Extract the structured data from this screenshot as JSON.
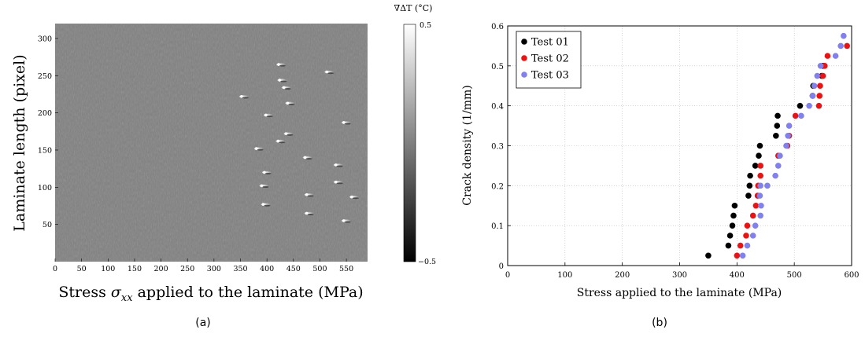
{
  "colors": {
    "test01": "#000000",
    "test02": "#ee1111",
    "test03": "#8080ee",
    "thermal_background": "#808080",
    "grid": "#bbbbbb"
  },
  "panel_a": {
    "caption": "(a)",
    "colorbar_title": "∇ΔT (°C)",
    "colorbar_max_label": "0.5",
    "colorbar_min_label": "−0.5",
    "xlabel_prefix": "Stress ",
    "xlabel_sigma": "σ",
    "xlabel_sub": "xx",
    "xlabel_suffix": " applied to the laminate (MPa)",
    "ylabel": "Laminate length (pixel)"
  },
  "panel_b": {
    "caption": "(b)"
  },
  "chart_data": [
    {
      "type": "heatmap",
      "xlabel": "Stress σxx applied to the laminate (MPa)",
      "ylabel": "Laminate length (pixel)",
      "colorbar_label": "∇ΔT (°C)",
      "colorbar_range": [
        -0.5,
        0.5
      ],
      "xlim": [
        0,
        590
      ],
      "ylim": [
        0,
        320
      ],
      "xticks": [
        0,
        50,
        100,
        150,
        200,
        250,
        300,
        350,
        400,
        450,
        500,
        550
      ],
      "yticks": [
        50,
        100,
        150,
        200,
        250,
        300
      ],
      "crack_signatures": [
        {
          "x": 352,
          "y": 222
        },
        {
          "x": 380,
          "y": 152
        },
        {
          "x": 390,
          "y": 102
        },
        {
          "x": 393,
          "y": 77
        },
        {
          "x": 395,
          "y": 120
        },
        {
          "x": 398,
          "y": 197
        },
        {
          "x": 421,
          "y": 162
        },
        {
          "x": 422,
          "y": 265
        },
        {
          "x": 424,
          "y": 244
        },
        {
          "x": 432,
          "y": 234
        },
        {
          "x": 436,
          "y": 172
        },
        {
          "x": 439,
          "y": 213
        },
        {
          "x": 472,
          "y": 140
        },
        {
          "x": 475,
          "y": 90
        },
        {
          "x": 475,
          "y": 65
        },
        {
          "x": 513,
          "y": 255
        },
        {
          "x": 530,
          "y": 130
        },
        {
          "x": 530,
          "y": 107
        },
        {
          "x": 545,
          "y": 187
        },
        {
          "x": 545,
          "y": 55
        },
        {
          "x": 560,
          "y": 87
        }
      ]
    },
    {
      "type": "scatter",
      "xlabel": "Stress applied to the laminate (MPa)",
      "ylabel": "Crack density (1/mm)",
      "xlim": [
        0,
        600
      ],
      "ylim": [
        0,
        0.6
      ],
      "xticks": [
        0,
        100,
        200,
        300,
        400,
        500,
        600
      ],
      "yticks": [
        0,
        0.1,
        0.2,
        0.3,
        0.4,
        0.5,
        0.6
      ],
      "ytick_labels": [
        "0",
        "0.1",
        "0.2",
        "0.3",
        "0.4",
        "0.5",
        "0.6"
      ],
      "grid": true,
      "legend_position": "top-left",
      "series": [
        {
          "name": "Test 01",
          "points": [
            [
              350,
              0.025
            ],
            [
              385,
              0.05
            ],
            [
              388,
              0.075
            ],
            [
              392,
              0.1
            ],
            [
              394,
              0.125
            ],
            [
              396,
              0.15
            ],
            [
              420,
              0.175
            ],
            [
              422,
              0.2
            ],
            [
              423,
              0.225
            ],
            [
              432,
              0.25
            ],
            [
              438,
              0.275
            ],
            [
              440,
              0.3
            ],
            [
              468,
              0.325
            ],
            [
              470,
              0.35
            ],
            [
              471,
              0.375
            ],
            [
              510,
              0.4
            ],
            [
              532,
              0.425
            ],
            [
              533,
              0.45
            ],
            [
              548,
              0.475
            ],
            [
              550,
              0.5
            ]
          ]
        },
        {
          "name": "Test 02",
          "points": [
            [
              400,
              0.025
            ],
            [
              406,
              0.05
            ],
            [
              416,
              0.075
            ],
            [
              418,
              0.1
            ],
            [
              428,
              0.125
            ],
            [
              433,
              0.15
            ],
            [
              436,
              0.175
            ],
            [
              437,
              0.2
            ],
            [
              441,
              0.225
            ],
            [
              441,
              0.25
            ],
            [
              472,
              0.275
            ],
            [
              488,
              0.3
            ],
            [
              491,
              0.325
            ],
            [
              502,
              0.375
            ],
            [
              543,
              0.4
            ],
            [
              544,
              0.425
            ],
            [
              545,
              0.45
            ],
            [
              550,
              0.475
            ],
            [
              553,
              0.5
            ],
            [
              558,
              0.525
            ],
            [
              592,
              0.55
            ]
          ]
        },
        {
          "name": "Test 03",
          "points": [
            [
              410,
              0.025
            ],
            [
              418,
              0.05
            ],
            [
              428,
              0.075
            ],
            [
              432,
              0.1
            ],
            [
              441,
              0.125
            ],
            [
              442,
              0.15
            ],
            [
              440,
              0.175
            ],
            [
              441,
              0.2
            ],
            [
              453,
              0.2
            ],
            [
              467,
              0.225
            ],
            [
              472,
              0.25
            ],
            [
              475,
              0.275
            ],
            [
              486,
              0.3
            ],
            [
              489,
              0.325
            ],
            [
              491,
              0.35
            ],
            [
              512,
              0.375
            ],
            [
              526,
              0.4
            ],
            [
              532,
              0.425
            ],
            [
              535,
              0.45
            ],
            [
              540,
              0.475
            ],
            [
              546,
              0.5
            ],
            [
              572,
              0.525
            ],
            [
              581,
              0.55
            ],
            [
              586,
              0.575
            ]
          ]
        }
      ]
    }
  ]
}
